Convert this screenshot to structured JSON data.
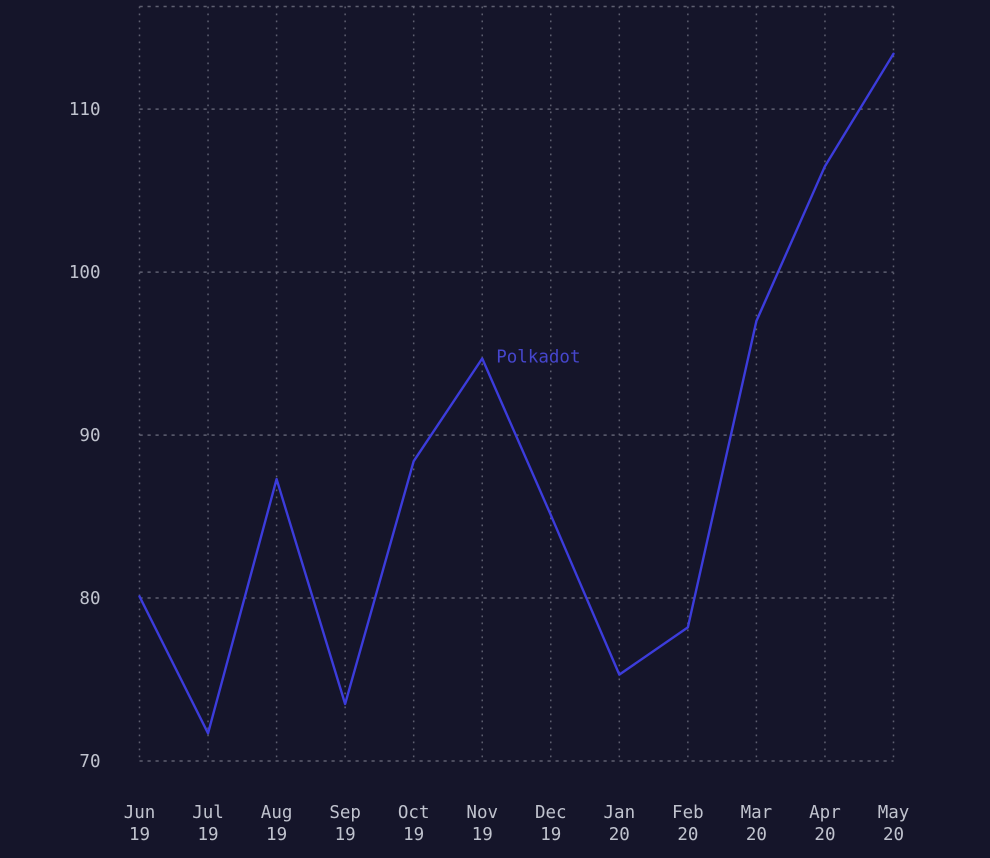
{
  "chart_data": {
    "type": "line",
    "title": "",
    "categories": [
      "Jun 19",
      "Jul 19",
      "Aug 19",
      "Sep 19",
      "Oct 19",
      "Nov 19",
      "Dec 19",
      "Jan 20",
      "Feb 20",
      "Mar 20",
      "Apr 20",
      "May 20"
    ],
    "x_tick_lines": [
      [
        "Jun",
        "19"
      ],
      [
        "Jul",
        "19"
      ],
      [
        "Aug",
        "19"
      ],
      [
        "Sep",
        "19"
      ],
      [
        "Oct",
        "19"
      ],
      [
        "Nov",
        "19"
      ],
      [
        "Dec",
        "19"
      ],
      [
        "Jan",
        "20"
      ],
      [
        "Feb",
        "20"
      ],
      [
        "Mar",
        "20"
      ],
      [
        "Apr",
        "20"
      ],
      [
        "May",
        "20"
      ]
    ],
    "y_ticks": [
      70,
      80,
      90,
      100,
      110
    ],
    "y_tick_labels": [
      "70",
      "80",
      "90",
      "100",
      "110"
    ],
    "ylim": [
      70,
      116.3
    ],
    "series": [
      {
        "name": "Polkadot",
        "values": [
          80.1,
          71.7,
          87.3,
          73.5,
          88.4,
          94.7,
          85.1,
          75.3,
          78.2,
          97.0,
          106.5,
          113.4
        ]
      }
    ],
    "grid": "dotted",
    "legend_position": "inline-label-at-peak",
    "label_anchor": {
      "index": 5
    },
    "colors": {
      "background": "#15152a",
      "line": "#3c3cdb",
      "series_label": "#4646cd",
      "grid": "#9b9daa",
      "tick_label": "#c0c3ce"
    }
  }
}
